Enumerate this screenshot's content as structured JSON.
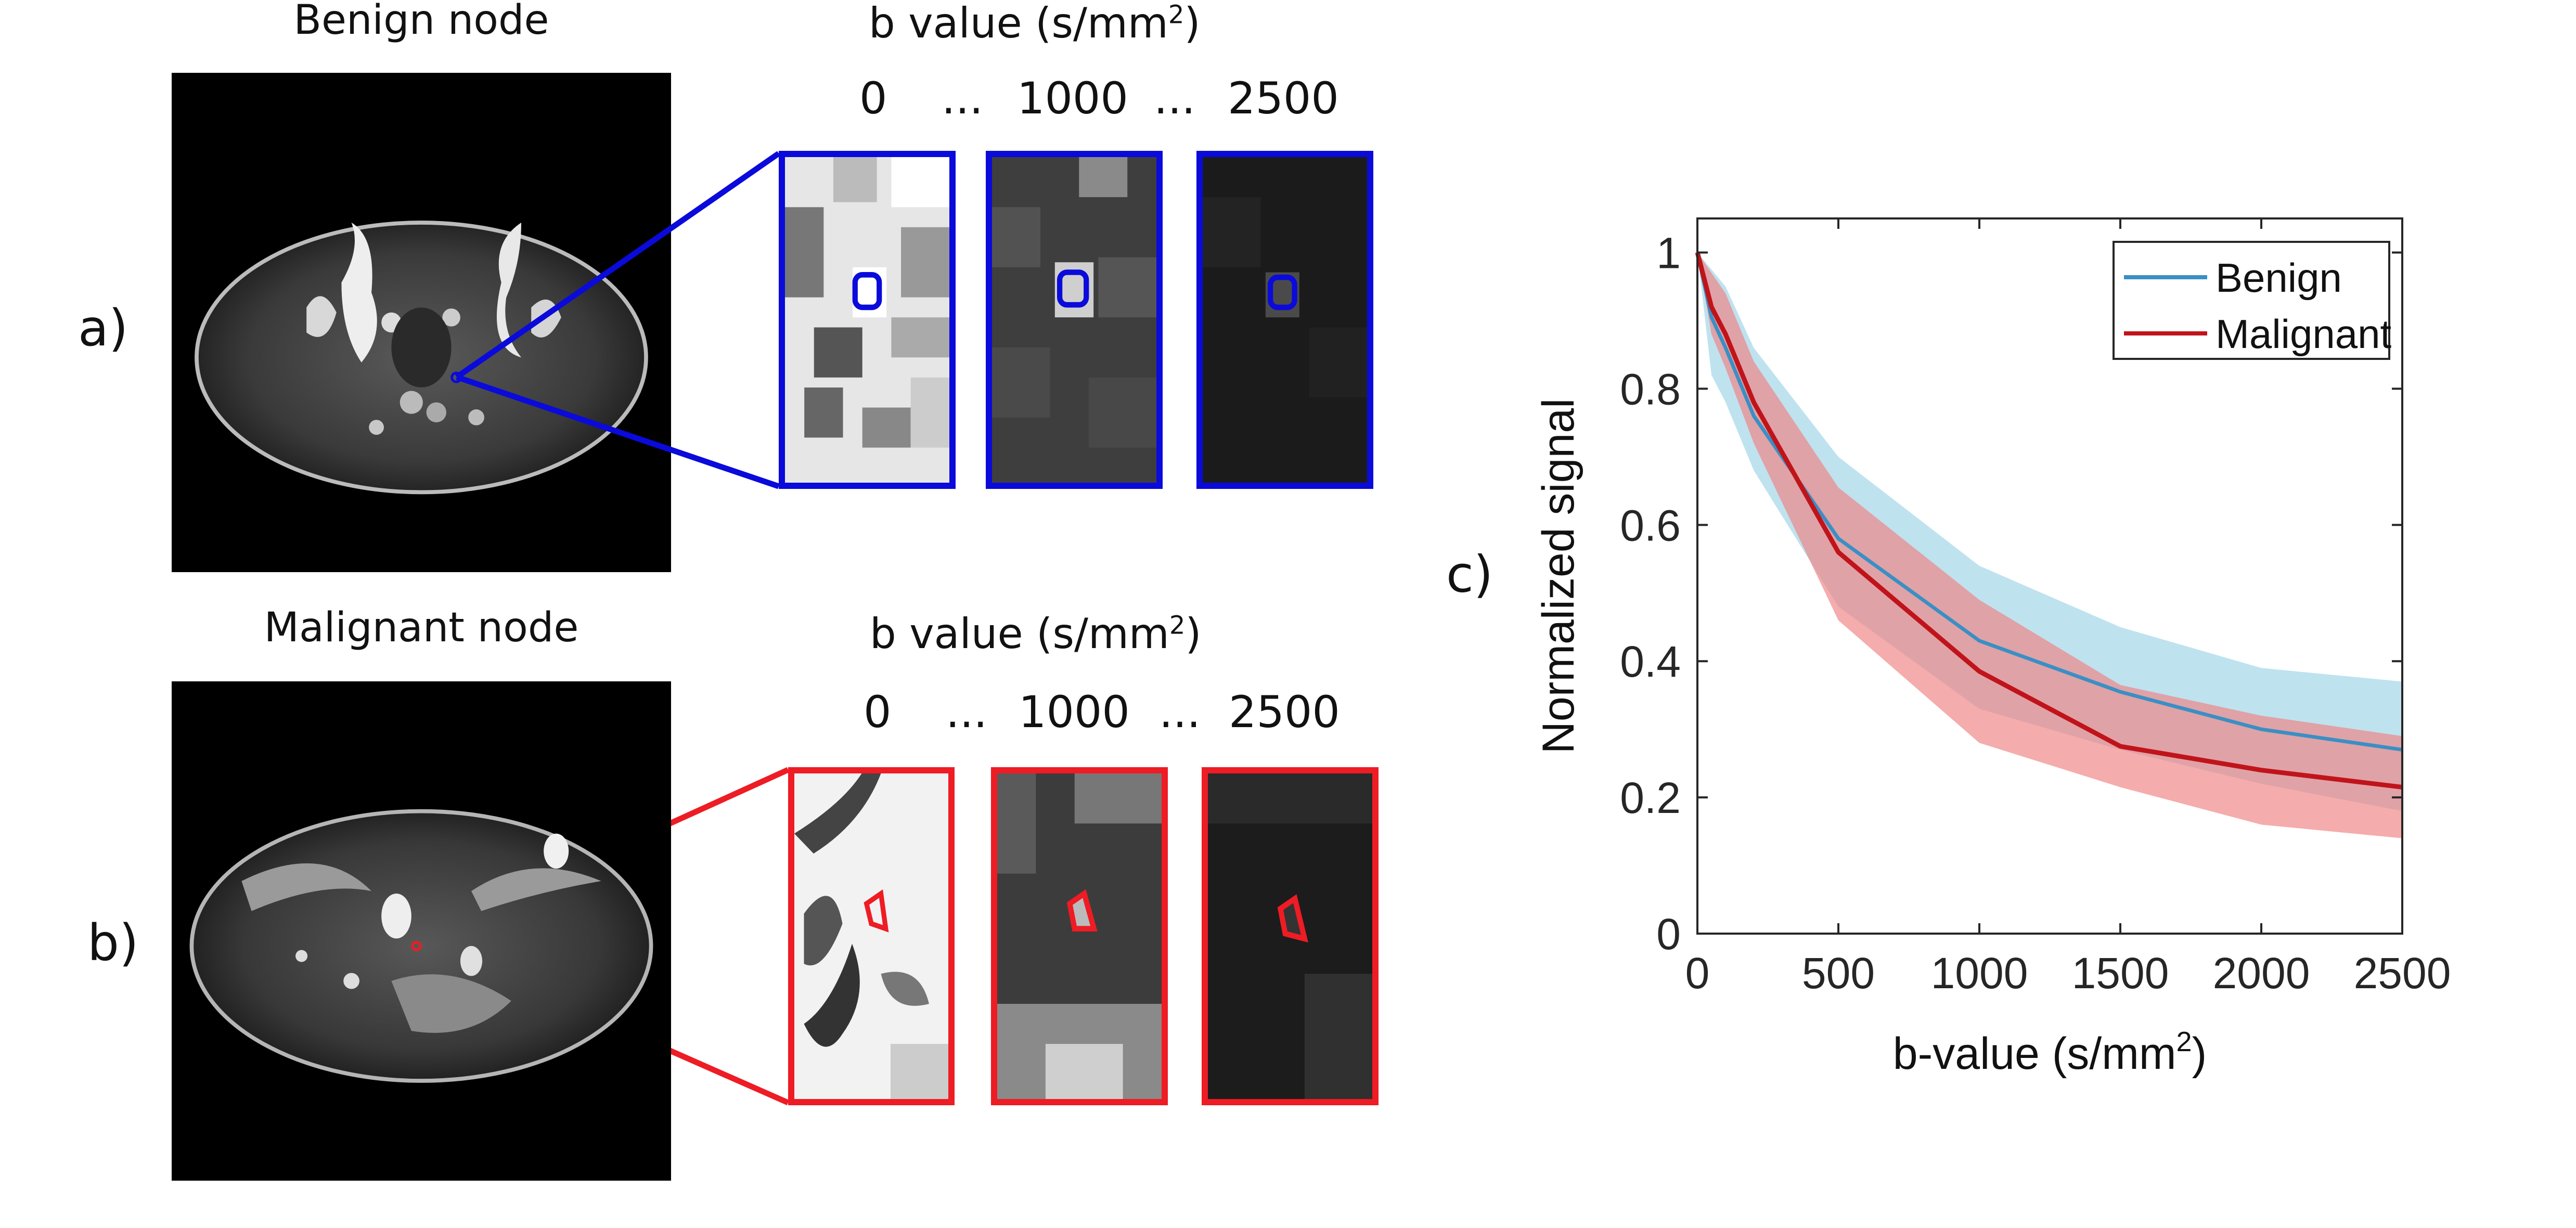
{
  "panels": {
    "a": {
      "label": "a)",
      "title": "Benign node",
      "bvalue_heading": "b value (s/mm",
      "bvalue_sup": "2",
      "bvalue_close": ")",
      "bvalues": [
        "0",
        "...",
        "1000",
        "...",
        "2500"
      ],
      "color": "#0a0adb"
    },
    "b": {
      "label": "b)",
      "title": "Malignant node",
      "bvalue_heading": "b value (s/mm",
      "bvalue_sup": "2",
      "bvalue_close": ")",
      "bvalues": [
        "0",
        "...",
        "1000",
        "...",
        "2500"
      ],
      "color": "#ee1c24"
    }
  },
  "chart_data": {
    "panel_label": "c)",
    "type": "line",
    "xlabel": "b-value (s/mm",
    "xlabel_sup": "2",
    "xlabel_close": ")",
    "ylabel": "Normalized signal",
    "xlim": [
      0,
      2500
    ],
    "ylim": [
      0,
      1.05
    ],
    "xticks": [
      0,
      500,
      1000,
      1500,
      2000,
      2500
    ],
    "yticks": [
      0,
      0.2,
      0.4,
      0.6,
      0.8,
      1
    ],
    "ytick_labels": [
      "0",
      "0.2",
      "0.4",
      "0.6",
      "0.8",
      "1"
    ],
    "legend_position": "top-right",
    "series": [
      {
        "name": "Benign",
        "color": "#3a8fc4",
        "band_color": "#a9d8ea",
        "x": [
          0,
          50,
          100,
          200,
          500,
          1000,
          1500,
          2000,
          2500
        ],
        "values": [
          1.0,
          0.905,
          0.86,
          0.76,
          0.58,
          0.43,
          0.355,
          0.3,
          0.27
        ],
        "upper": [
          1.0,
          0.975,
          0.95,
          0.86,
          0.7,
          0.54,
          0.45,
          0.39,
          0.37
        ],
        "lower": [
          1.0,
          0.82,
          0.78,
          0.68,
          0.48,
          0.33,
          0.27,
          0.22,
          0.18
        ]
      },
      {
        "name": "Malignant",
        "color": "#c0141a",
        "band_color": "#f08080",
        "x": [
          0,
          50,
          100,
          200,
          500,
          1000,
          1500,
          2000,
          2500
        ],
        "values": [
          1.0,
          0.92,
          0.88,
          0.78,
          0.56,
          0.385,
          0.275,
          0.24,
          0.215
        ],
        "upper": [
          1.0,
          0.97,
          0.94,
          0.84,
          0.655,
          0.49,
          0.365,
          0.32,
          0.29
        ],
        "lower": [
          1.0,
          0.88,
          0.83,
          0.72,
          0.46,
          0.28,
          0.215,
          0.16,
          0.14
        ]
      }
    ]
  }
}
